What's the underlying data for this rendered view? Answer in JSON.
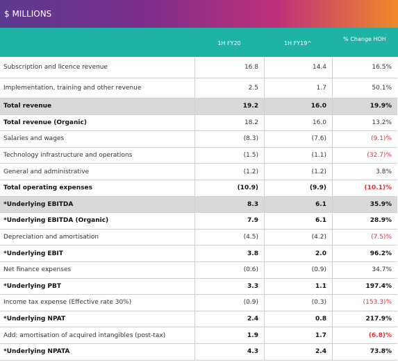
{
  "header": {
    "title": "$ MILLIONS",
    "columns": [
      "1H FY20",
      "1H FY19^",
      "% Change HOH"
    ]
  },
  "table": {
    "rows": [
      [
        "Subscription and licence revenue",
        "16.8",
        "14.4",
        "16.5%"
      ],
      [
        "Implementation, training and other revenue",
        "2.5",
        "1.7",
        "50.1%"
      ],
      [
        "Total revenue",
        "19.2",
        "16.0",
        "19.9%"
      ],
      [
        "Total revenue (Organic)",
        "18.2",
        "16.0",
        "13.2%"
      ],
      [
        "Salaries and wages",
        "(8.3)",
        "(7.6)",
        "(9.1)%"
      ],
      [
        "Technology infrastructure and operations",
        "(1.5)",
        "(1.1)",
        "(32.7)%"
      ],
      [
        "General and administrative",
        "(1.2)",
        "(1.2)",
        "3.8%"
      ],
      [
        "Total operating expenses",
        "(10.9)",
        "(9.9)",
        "(10.1)%"
      ],
      [
        "*Underlying EBITDA",
        "8.3",
        "6.1",
        "35.9%"
      ],
      [
        "*Underlying EBITDA (Organic)",
        "7.9",
        "6.1",
        "28.9%"
      ],
      [
        "Depreciation and amortisation",
        "(4.5)",
        "(4.2)",
        "(7.5)%"
      ],
      [
        "*Underlying EBIT",
        "3.8",
        "2.0",
        "96.2%"
      ],
      [
        "Net finance expenses",
        "(0.6)",
        "(0.9)",
        "34.7%"
      ],
      [
        "*Underlying PBT",
        "3.3",
        "1.1",
        "197.4%"
      ],
      [
        "Income tax expense (Effective rate 30%)",
        "(0.9)",
        "(0.3)",
        "(153.3)%"
      ],
      [
        "*Underlying NPAT",
        "2.4",
        "0.8",
        "217.9%"
      ],
      [
        "Add: amortisation of acquired intangibles (post-tax)",
        "1.9",
        "1.7",
        "(6.8)%"
      ],
      [
        "*Underlying NPATA",
        "4.3",
        "2.4",
        "73.8%"
      ]
    ]
  }
}
